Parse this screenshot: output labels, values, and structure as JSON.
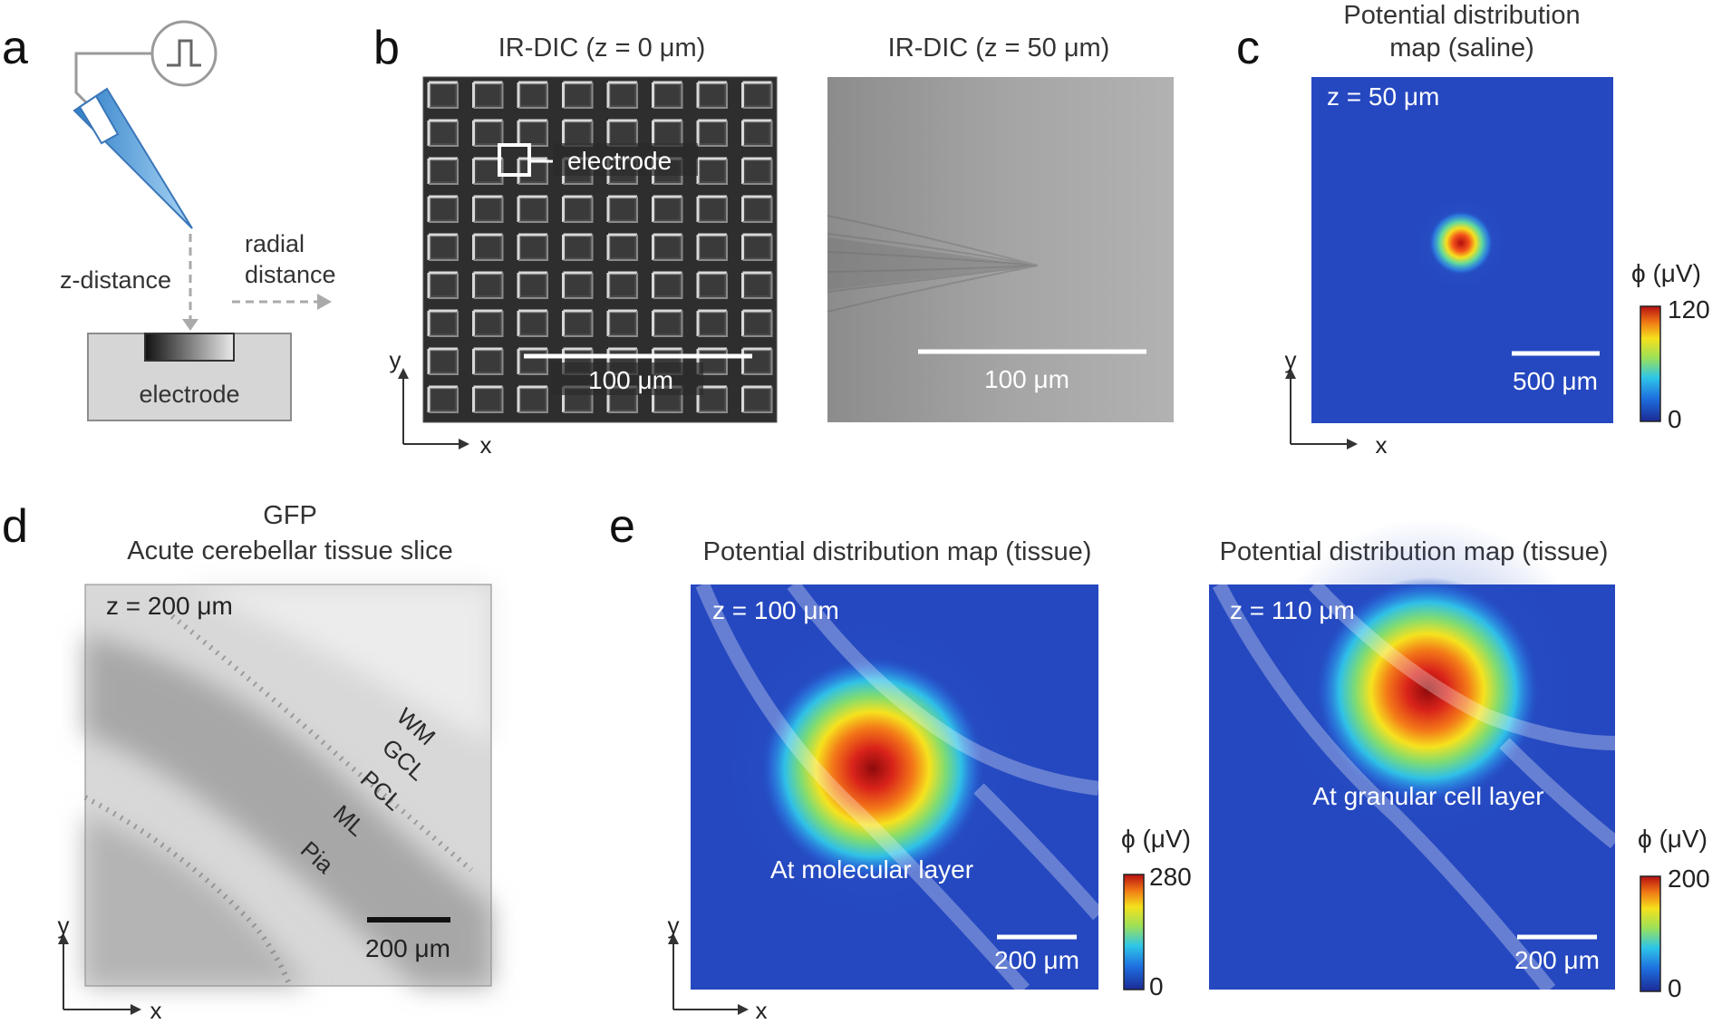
{
  "panels": {
    "a": {
      "letter": "a",
      "z_distance": "z-distance",
      "radial_line1": "radial",
      "radial_line2": "distance",
      "electrode": "electrode"
    },
    "b": {
      "letter": "b",
      "left_title": "IR-DIC (z = 0 μm)",
      "right_title": "IR-DIC  (z = 50 μm)",
      "electrode_label": "electrode",
      "scale_left": "100 μm",
      "scale_right": "100 μm",
      "axis_x": "x",
      "axis_y": "y"
    },
    "c": {
      "letter": "c",
      "title_line1": "Potential distribution",
      "title_line2": "map (saline)",
      "z_label": "z = 50 μm",
      "scale": "500 μm",
      "colorbar_label": "ϕ (μV)",
      "colorbar_max": "120",
      "colorbar_min": "0",
      "axis_x": "x",
      "axis_y": "y"
    },
    "d": {
      "letter": "d",
      "title_line1": "GFP",
      "title_line2": "Acute cerebellar tissue slice",
      "z_label": "z = 200 μm",
      "layers": [
        "WM",
        "GCL",
        "PCL",
        "ML",
        "Pia"
      ],
      "scale": "200 μm",
      "axis_x": "x",
      "axis_y": "y"
    },
    "e": {
      "letter": "e",
      "left": {
        "title": "Potential distribution map (tissue)",
        "z_label": "z = 100 μm",
        "caption": "At molecular layer",
        "scale": "200 μm",
        "colorbar_label": "ϕ (μV)",
        "colorbar_max": "280",
        "colorbar_min": "0"
      },
      "right": {
        "title": "Potential distribution map (tissue)",
        "z_label": "z = 110 μm",
        "caption": "At granular cell layer",
        "scale": "200 μm",
        "colorbar_label": "ϕ (μV)",
        "colorbar_max": "200",
        "colorbar_min": "0"
      },
      "axis_x": "x",
      "axis_y": "y"
    }
  },
  "colors": {
    "jet_low": "#1f2f9e",
    "jet_high": "#8b0000",
    "pipette": "#6aaee0",
    "tissue_gray": "#d6d6d6"
  }
}
